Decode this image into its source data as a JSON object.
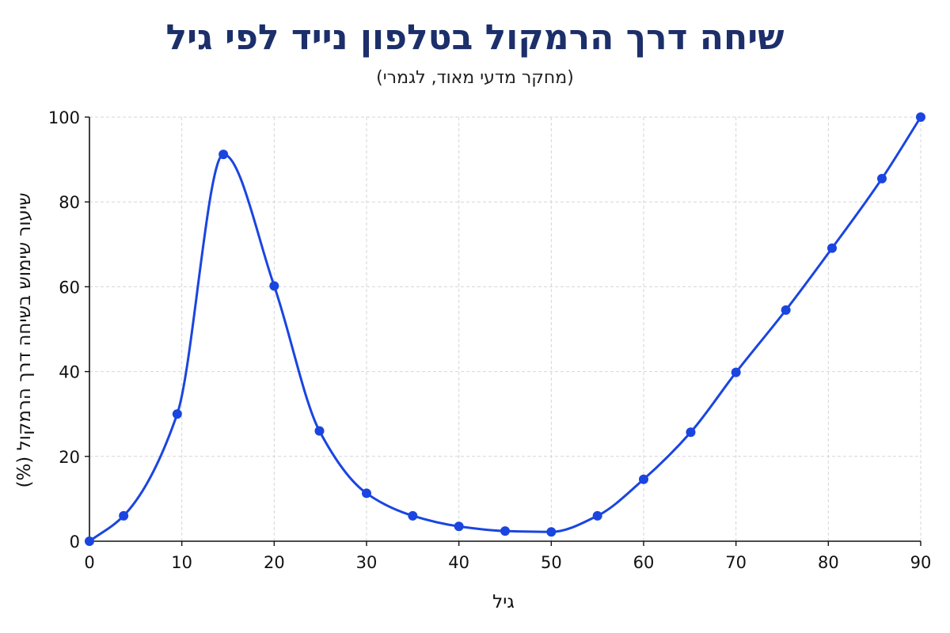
{
  "chart_data": {
    "type": "line",
    "title": "שיחה דרך הרמקול בטלפון נייד לפי גיל",
    "subtitle": "(מחקר מדעי מאוד, לגמרי)",
    "xlabel": "גיל",
    "ylabel": "שיעור שימוש בשיחה דרך הרמקול (%)",
    "xlim": [
      0,
      90
    ],
    "ylim": [
      0,
      100
    ],
    "xticks": [
      0,
      10,
      20,
      30,
      40,
      50,
      60,
      70,
      80,
      90
    ],
    "yticks": [
      0,
      20,
      40,
      60,
      80,
      100
    ],
    "grid": true,
    "series": [
      {
        "color": "#1a45e0",
        "x": [
          0,
          3.7,
          9.5,
          14.5,
          20,
          24.9,
          30,
          35,
          40,
          45,
          50,
          55,
          60,
          65.1,
          70,
          75.4,
          80.4,
          85.8,
          90
        ],
        "y": [
          0,
          6,
          30,
          91.2,
          60.2,
          26,
          11.3,
          6,
          3.5,
          2.4,
          2.2,
          6,
          14.6,
          25.7,
          39.8,
          54.5,
          69.1,
          85.5,
          100
        ]
      }
    ]
  }
}
